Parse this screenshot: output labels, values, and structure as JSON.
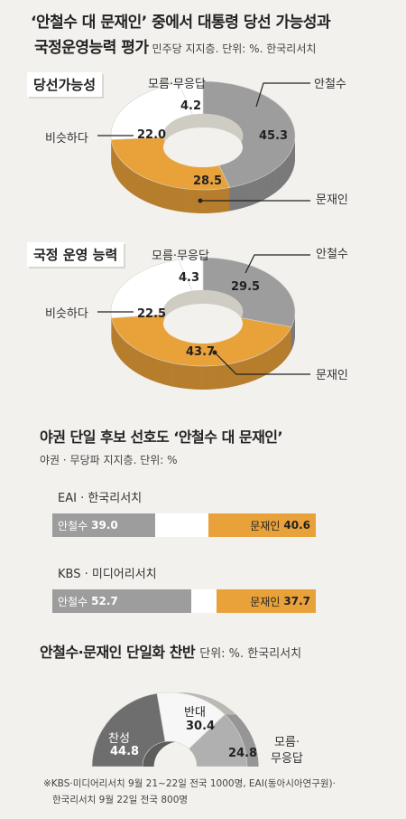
{
  "header": {
    "title_line1": "‘안철수 대 문재인’ 중에서 대통령 당선 가능성과",
    "title_line2_bold": "국정운영능력 평가",
    "title_line2_sub": "민주당 지지층. 단위: %. 한국리서치"
  },
  "colors": {
    "ahn": "#9d9d9d",
    "moon": "#e9a23a",
    "similar": "#ffffff",
    "dont_know": "#ffffff",
    "favor": "#6e6e6e",
    "oppose": "#f7f7f7",
    "dk3": "#b0b0b0"
  },
  "chart_data": [
    {
      "type": "pie",
      "title": "당선가능성",
      "categories": [
        "안철수",
        "문재인",
        "비슷하다",
        "모름·무응답"
      ],
      "values": [
        45.3,
        28.5,
        22.0,
        4.2
      ],
      "value_labels": [
        "45.3",
        "28.5",
        "22.0",
        "4.2"
      ]
    },
    {
      "type": "pie",
      "title": "국정 운영 능력",
      "categories": [
        "안철수",
        "문재인",
        "비슷하다",
        "모름·무응답"
      ],
      "values": [
        29.5,
        43.7,
        22.5,
        4.3
      ],
      "value_labels": [
        "29.5",
        "43.7",
        "22.5",
        "4.3"
      ]
    },
    {
      "type": "bar",
      "title": "야권 단일 후보 선호도 ‘안철수 대 문재인’",
      "subtitle": "야권 · 무당파 지지층. 단위: %",
      "series": [
        {
          "source": "EAI · 한국리서치",
          "ahn_label": "안철수",
          "ahn": 39.0,
          "ahn_text": "39.0",
          "moon_label": "문재인",
          "moon": 40.6,
          "moon_text": "40.6"
        },
        {
          "source": "KBS · 미디어리서치",
          "ahn_label": "안철수",
          "ahn": 52.7,
          "ahn_text": "52.7",
          "moon_label": "문재인",
          "moon": 37.7,
          "moon_text": "37.7"
        }
      ]
    },
    {
      "type": "pie",
      "title": "안철수·문재인 단일화 찬반",
      "subtitle": "단위: %. 한국리서치",
      "categories": [
        "찬성",
        "반대",
        "모름·무응답"
      ],
      "values": [
        44.8,
        30.4,
        24.8
      ],
      "value_labels": [
        "44.8",
        "30.4",
        "24.8"
      ]
    }
  ],
  "labels": {
    "ahn": "안철수",
    "moon": "문재인",
    "similar": "비슷하다",
    "dk": "모름·무응답",
    "favor": "찬성",
    "oppose": "반대",
    "dk_line1": "모름·",
    "dk_line2": "무응답"
  },
  "notes": {
    "line1": "※KBS·미디어리서치 9월 21~22일 전국 1000명, EAI(동아시아연구원)·",
    "line2": "한국리서치 9월 22일 전국 800명"
  }
}
